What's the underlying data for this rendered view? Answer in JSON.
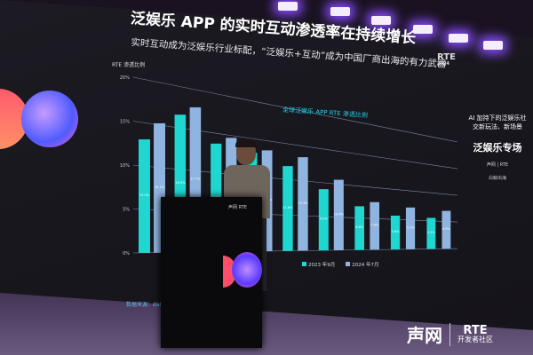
{
  "screen": {
    "title": "泛娱乐 APP 的实时互动渗透率在持续增长",
    "subtitle": "实时互动成为泛娱乐行业标配，“泛娱乐+互动”成为中国厂商出海的有力武器",
    "y_label": "RTE 渗透比例",
    "chart_title": "全球泛娱乐 APP RTE 渗透比例",
    "legend": [
      "2023 年9月",
      "2024 年7月"
    ],
    "series_colors": [
      "#1fd6d0",
      "#8fb4e0"
    ],
    "y_ticks": [
      "0%",
      "5%",
      "10%",
      "15%",
      "20%"
    ],
    "series": [
      {
        "name": "2023 年9月",
        "values": [
          13.0,
          16.5,
          13.6,
          13.0,
          11.8,
          9.0,
          6.8,
          5.6,
          5.5
        ]
      },
      {
        "name": "2024 年7月",
        "values": [
          15.1,
          17.7,
          14.6,
          13.6,
          13.3,
          10.6,
          7.6,
          7.1,
          6.9
        ]
      }
    ],
    "source": "数据来源：data.",
    "rte_logo": "RTE",
    "rte_year": "2024"
  },
  "side_panel": {
    "heading": "AI 加持下的泛娱乐社交新玩法、新场景",
    "session": "泛娱乐专场",
    "host": "声网 | RTE",
    "sponsor": "白鲸出海"
  },
  "footer_logo": {
    "brand": "声网",
    "rte": "RTE",
    "community": "开发者社区"
  },
  "podium_logo": "声网 RTE"
}
